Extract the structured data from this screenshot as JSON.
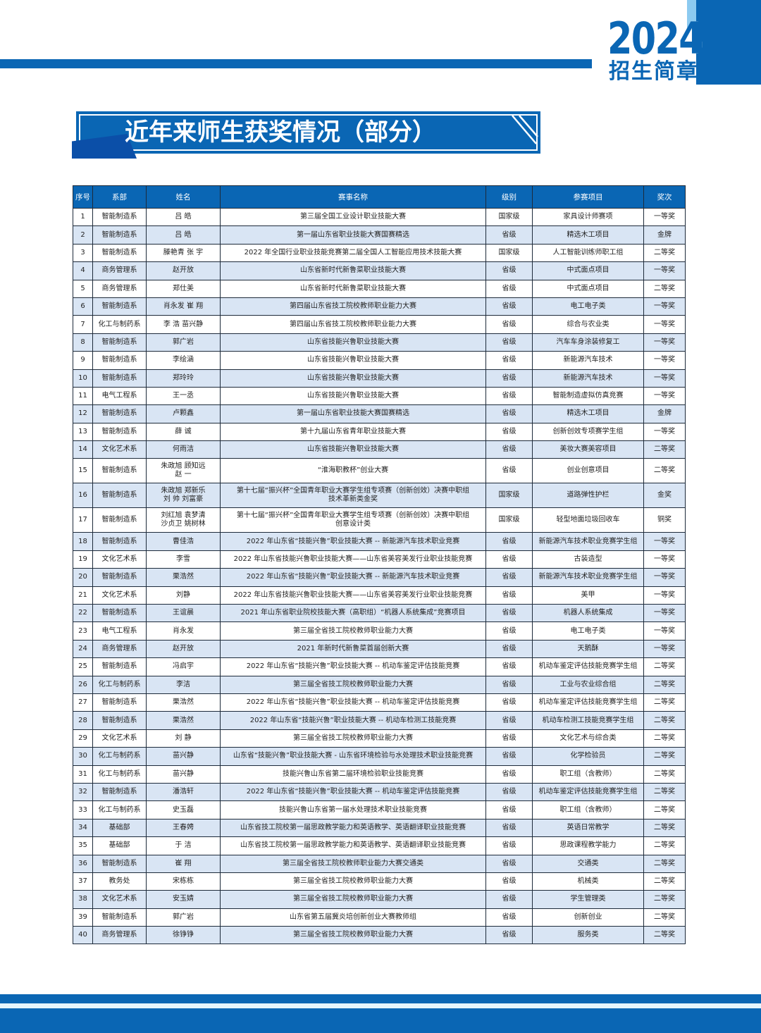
{
  "header": {
    "year": "2024",
    "brochure": "招生简章",
    "brand_color": "#0a66b4"
  },
  "banner": {
    "title": "近年来师生获奖情况（部分）"
  },
  "table": {
    "columns": [
      "序号",
      "系部",
      "姓名",
      "赛事名称",
      "级别",
      "参赛项目",
      "奖次"
    ],
    "rows": [
      [
        "1",
        "智能制造系",
        "吕  皓",
        "第三届全国工业设计职业技能大赛",
        "国家级",
        "家具设计师赛项",
        "一等奖"
      ],
      [
        "2",
        "智能制造系",
        "吕  皓",
        "第一届山东省职业技能大赛国赛精选",
        "省级",
        "精选木工项目",
        "金牌"
      ],
      [
        "3",
        "智能制造系",
        "滕艳青   张  宇",
        "2022 年全国行业职业技能竞赛第二届全国人工智能应用技术技能大赛",
        "国家级",
        "人工智能训练师职工组",
        "二等奖"
      ],
      [
        "4",
        "商务管理系",
        "赵开放",
        "山东省新时代新鲁菜职业技能大赛",
        "省级",
        "中式面点项目",
        "一等奖"
      ],
      [
        "5",
        "商务管理系",
        "郑仕美",
        "山东省新时代新鲁菜职业技能大赛",
        "省级",
        "中式面点项目",
        "二等奖"
      ],
      [
        "6",
        "智能制造系",
        "肖永发   崔  翔",
        "第四届山东省技工院校教师职业能力大赛",
        "省级",
        "电工电子类",
        "一等奖"
      ],
      [
        "7",
        "化工与制药系",
        "李  浩   苗兴静",
        "第四届山东省技工院校教师职业能力大赛",
        "省级",
        "综合与农业类",
        "一等奖"
      ],
      [
        "8",
        "智能制造系",
        "郭广岩",
        "山东省技能兴鲁职业技能大赛",
        "省级",
        "汽车车身涂装修复工",
        "一等奖"
      ],
      [
        "9",
        "智能制造系",
        "李绘涵",
        "山东省技能兴鲁职业技能大赛",
        "省级",
        "新能源汽车技术",
        "一等奖"
      ],
      [
        "10",
        "智能制造系",
        "郑玲玲",
        "山东省技能兴鲁职业技能大赛",
        "省级",
        "新能源汽车技术",
        "一等奖"
      ],
      [
        "11",
        "电气工程系",
        "王一丞",
        "山东省技能兴鲁职业技能大赛",
        "省级",
        "智能制造虚拟仿真竞赛",
        "一等奖"
      ],
      [
        "12",
        "智能制造系",
        "卢颗鑫",
        "第一届山东省职业技能大赛国赛精选",
        "省级",
        "精选木工项目",
        "金牌"
      ],
      [
        "13",
        "智能制造系",
        "薛  诚",
        "第十九届山东省青年职业技能大赛",
        "省级",
        "创新创效专项赛学生组",
        "一等奖"
      ],
      [
        "14",
        "文化艺术系",
        "何雨洁",
        "山东省技能兴鲁职业技能大赛",
        "省级",
        "美妆大赛美容项目",
        "二等奖"
      ],
      [
        "15",
        "智能制造系",
        "朱政旭   顾知远\n赵  一",
        "“淮海职教杯”创业大赛",
        "省级",
        "创业创意项目",
        "二等奖"
      ],
      [
        "16",
        "智能制造系",
        "朱政旭   郑新乐\n刘  帅   刘富豪",
        "第十七届“振兴杯”全国青年职业大赛学生组专项赛（创新创效）决赛中职组\n技术革新类金奖",
        "国家级",
        "道路弹性护栏",
        "金奖"
      ],
      [
        "17",
        "智能制造系",
        "刘红旭   袁梦清\n沙贞卫   姚树林",
        "第十七届“振兴杯”全国青年职业大赛学生组专项赛（创新创效）决赛中职组\n创意设计类",
        "国家级",
        "轻型地面垃圾回收车",
        "铜奖"
      ],
      [
        "18",
        "智能制造系",
        "曹佳浩",
        "2022 年山东省“技能兴鲁”职业技能大赛 -- 新能源汽车技术职业竞赛",
        "省级",
        "新能源汽车技术职业竞赛学生组",
        "一等奖"
      ],
      [
        "19",
        "文化艺术系",
        "李雪",
        "2022 年山东省技能兴鲁职业技能大赛——山东省美容美发行业职业技能竞赛",
        "省级",
        "古装造型",
        "一等奖"
      ],
      [
        "20",
        "智能制造系",
        "栗浩然",
        "2022 年山东省“技能兴鲁”职业技能大赛 -- 新能源汽车技术职业竞赛",
        "省级",
        "新能源汽车技术职业竞赛学生组",
        "一等奖"
      ],
      [
        "21",
        "文化艺术系",
        "刘静",
        "2022 年山东省技能兴鲁职业技能大赛——山东省美容美发行业职业技能竞赛",
        "省级",
        "美甲",
        "一等奖"
      ],
      [
        "22",
        "智能制造系",
        "王谊晨",
        "2021 年山东省职业院校技能大赛（高职组）“机器人系统集成”竞赛项目",
        "省级",
        "机器人系统集成",
        "一等奖"
      ],
      [
        "23",
        "电气工程系",
        "肖永发",
        "第三届全省技工院校教师职业能力大赛",
        "省级",
        "电工电子类",
        "一等奖"
      ],
      [
        "24",
        "商务管理系",
        "赵开放",
        "2021 年新时代新鲁菜首届创新大赛",
        "省级",
        "天鹅酥",
        "一等奖"
      ],
      [
        "25",
        "智能制造系",
        "冯启宇",
        "2022 年山东省“技能兴鲁”职业技能大赛 -- 机动车鉴定评估技能竞赛",
        "省级",
        "机动车鉴定评估技能竞赛学生组",
        "二等奖"
      ],
      [
        "26",
        "化工与制药系",
        "李洁",
        "第三届全省技工院校教师职业能力大赛",
        "省级",
        "工业与农业综合组",
        "二等奖"
      ],
      [
        "27",
        "智能制造系",
        "栗浩然",
        "2022 年山东省“技能兴鲁”职业技能大赛 -- 机动车鉴定评估技能竞赛",
        "省级",
        "机动车鉴定评估技能竞赛学生组",
        "二等奖"
      ],
      [
        "28",
        "智能制造系",
        "栗浩然",
        "2022 年山东省“技能兴鲁”职业技能大赛 -- 机动车检测工技能竞赛",
        "省级",
        "机动车检测工技能竞赛学生组",
        "二等奖"
      ],
      [
        "29",
        "文化艺术系",
        "刘  静",
        "第三届全省技工院校教师职业能力大赛",
        "省级",
        "文化艺术与综合类",
        "二等奖"
      ],
      [
        "30",
        "化工与制药系",
        "苗兴静",
        "山东省“技能兴鲁”职业技能大赛 - 山东省环境检验与水处理技术职业技能竞赛",
        "省级",
        "化学检验员",
        "二等奖"
      ],
      [
        "31",
        "化工与制药系",
        "苗兴静",
        "技能兴鲁山东省第二届环境检验职业技能竞赛",
        "省级",
        "职工组（含教师）",
        "二等奖"
      ],
      [
        "32",
        "智能制造系",
        "潘浩轩",
        "2022 年山东省“技能兴鲁”职业技能大赛 -- 机动车鉴定评估技能竞赛",
        "省级",
        "机动车鉴定评估技能竞赛学生组",
        "二等奖"
      ],
      [
        "33",
        "化工与制药系",
        "史玉磊",
        "技能兴鲁山东省第一届水处理技术职业技能竞赛",
        "省级",
        "职工组（含教师）",
        "二等奖"
      ],
      [
        "34",
        "基础部",
        "王春娉",
        "山东省技工院校第一届思政教学能力和英语教学、英语翻译职业技能竞赛",
        "省级",
        "英语日常教学",
        "二等奖"
      ],
      [
        "35",
        "基础部",
        "于  洁",
        "山东省技工院校第一届思政教学能力和英语教学、英语翻译职业技能竞赛",
        "省级",
        "思政课程教学能力",
        "二等奖"
      ],
      [
        "36",
        "智能制造系",
        "崔  翔",
        "第三届全省技工院校教师职业能力大赛交通类",
        "省级",
        "交通类",
        "二等奖"
      ],
      [
        "37",
        "教务处",
        "宋栋栋",
        "第三届全省技工院校教师职业能力大赛",
        "省级",
        "机械类",
        "二等奖"
      ],
      [
        "38",
        "文化艺术系",
        "安玉婧",
        "第三届全省技工院校教师职业能力大赛",
        "省级",
        "学生管理类",
        "二等奖"
      ],
      [
        "39",
        "智能制造系",
        "郭广岩",
        "山东省第五届冀炎培创新创业大赛教师组",
        "省级",
        "创新创业",
        "二等奖"
      ],
      [
        "40",
        "商务管理系",
        "徐铮铮",
        "第三届全省技工院校教师职业能力大赛",
        "省级",
        "服务类",
        "二等奖"
      ]
    ]
  }
}
